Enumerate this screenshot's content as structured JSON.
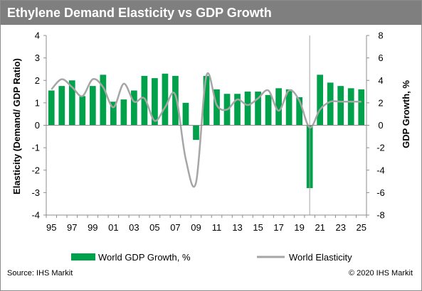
{
  "chart_data": {
    "type": "bar",
    "title": "Ethylene Demand Elasticity vs GDP Growth",
    "ylabel_left": "Elasticity (Demand/ GDP Ratio)",
    "ylabel_right": "GDP Growth, %",
    "ylim_left": [
      -4,
      4
    ],
    "ylim_right": [
      -8,
      8
    ],
    "yticks_left": [
      "4",
      "3",
      "2",
      "1",
      "0",
      "-1",
      "-2",
      "-3",
      "-4"
    ],
    "yticks_right": [
      "8",
      "6",
      "4",
      "2",
      "0",
      "-2",
      "-4",
      "-6",
      "-8"
    ],
    "x_tick_labels": [
      "95",
      "97",
      "99",
      "01",
      "03",
      "05",
      "07",
      "09",
      "11",
      "13",
      "15",
      "17",
      "19",
      "21",
      "23",
      "25"
    ],
    "years": [
      1995,
      1996,
      1997,
      1998,
      1999,
      2000,
      2001,
      2002,
      2003,
      2004,
      2005,
      2006,
      2007,
      2008,
      2009,
      2010,
      2011,
      2012,
      2013,
      2014,
      2015,
      2016,
      2017,
      2018,
      2019,
      2020,
      2021,
      2022,
      2023,
      2024,
      2025
    ],
    "series": [
      {
        "name": "World GDP Growth, %",
        "kind": "bar",
        "axis": "right",
        "color": "#00a14b",
        "values": [
          3.1,
          3.5,
          4.0,
          2.6,
          3.5,
          4.5,
          2.1,
          2.3,
          3.1,
          4.4,
          4.2,
          4.6,
          4.4,
          2.0,
          -1.3,
          4.4,
          3.2,
          2.8,
          2.8,
          3.0,
          3.0,
          2.7,
          3.3,
          3.2,
          2.5,
          -5.6,
          4.5,
          3.8,
          3.5,
          3.3,
          3.2
        ]
      },
      {
        "name": "World Elasticity",
        "kind": "line",
        "axis": "left",
        "color": "#a6a6a6",
        "values": [
          1.6,
          2.05,
          1.7,
          1.3,
          2.05,
          1.7,
          0.8,
          1.85,
          1.05,
          1.2,
          0.2,
          0.8,
          1.35,
          -1.5,
          -2.55,
          2.2,
          0.9,
          0.7,
          1.15,
          0.9,
          1.2,
          1.55,
          0.65,
          1.55,
          1.1,
          -0.1,
          0.7,
          1.05,
          1.05,
          1.05,
          1.05
        ]
      }
    ],
    "reference_line_year": 2020,
    "grid": false,
    "legend_position": "bottom"
  },
  "footer": {
    "source": "Source: IHS Markit",
    "copyright": "© 2020 IHS Markit"
  }
}
